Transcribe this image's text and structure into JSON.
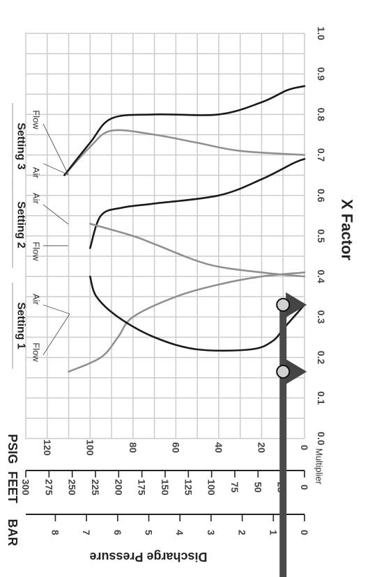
{
  "chart_data": {
    "type": "line",
    "orientation": "rotated 90 degrees clockwise",
    "xlabel": "X Factor",
    "x_ticks": [
      "0.0",
      "0.1",
      "0.2",
      "0.3",
      "0.4",
      "0.5",
      "0.6",
      "0.7",
      "0.8",
      "0.9",
      "1.0"
    ],
    "xlim": [
      0,
      1
    ],
    "ylim": [
      0,
      130
    ],
    "psig_ticks": [
      "0",
      "20",
      "40",
      "60",
      "80",
      "100",
      "120"
    ],
    "feet_ticks": [
      "0",
      "25",
      "50",
      "75",
      "100",
      "125",
      "150",
      "175",
      "200",
      "225",
      "250",
      "275",
      "300"
    ],
    "bar_ticks": [
      "0",
      "1",
      "2",
      "3",
      "4",
      "5",
      "6",
      "7",
      "8"
    ],
    "units": {
      "bar": "BAR",
      "feet": "FEET",
      "psig": "PSIG"
    },
    "scale_title": "Discharge Pressure",
    "multiplier_label": "Multiplier",
    "grid": true,
    "groups": [
      {
        "label": "Setting 1",
        "left": "Flow",
        "right": "Air"
      },
      {
        "label": "Setting 2",
        "left": "Flow",
        "right": "Air"
      },
      {
        "label": "Setting 3",
        "left": "Air",
        "right": "Flow"
      }
    ],
    "series": [
      {
        "label": "Setting 1 Flow",
        "color": "#909090",
        "x": [
          0.165,
          0.2,
          0.25,
          0.3,
          0.35,
          0.38,
          0.4,
          0.41
        ],
        "y": [
          110,
          95,
          87,
          80,
          60,
          40,
          20,
          0
        ]
      },
      {
        "label": "Setting 1 Air",
        "color": "#1a1a1a",
        "x": [
          0.33,
          0.3,
          0.27,
          0.24,
          0.22,
          0.22,
          0.25,
          0.3,
          0.35,
          0.4
        ],
        "y": [
          0,
          5,
          10,
          15,
          25,
          50,
          70,
          87,
          97,
          100
        ]
      },
      {
        "label": "Setting 2 Flow",
        "color": "#1a1a1a",
        "x": [
          0.47,
          0.55,
          0.57,
          0.58,
          0.6,
          0.64,
          0.68,
          0.69
        ],
        "y": [
          100,
          95,
          85,
          70,
          40,
          20,
          5,
          0
        ]
      },
      {
        "label": "Setting 2 Air",
        "color": "#909090",
        "x": [
          0.53,
          0.5,
          0.48,
          0.43,
          0.41,
          0.4
        ],
        "y": [
          100,
          80,
          70,
          45,
          20,
          0
        ]
      },
      {
        "label": "Setting 3 Air",
        "color": "#909090",
        "x": [
          0.65,
          0.72,
          0.76,
          0.75,
          0.73,
          0.71,
          0.7
        ],
        "y": [
          112,
          100,
          90,
          70,
          50,
          30,
          0
        ]
      },
      {
        "label": "Setting 3 Flow",
        "color": "#1a1a1a",
        "x": [
          0.65,
          0.73,
          0.79,
          0.8,
          0.8,
          0.83,
          0.86,
          0.87
        ],
        "y": [
          112,
          100,
          90,
          70,
          40,
          20,
          8,
          0
        ]
      }
    ],
    "markers": [
      {
        "x": 0.165,
        "y": 10
      },
      {
        "x": 0.33,
        "y": 10
      }
    ]
  }
}
